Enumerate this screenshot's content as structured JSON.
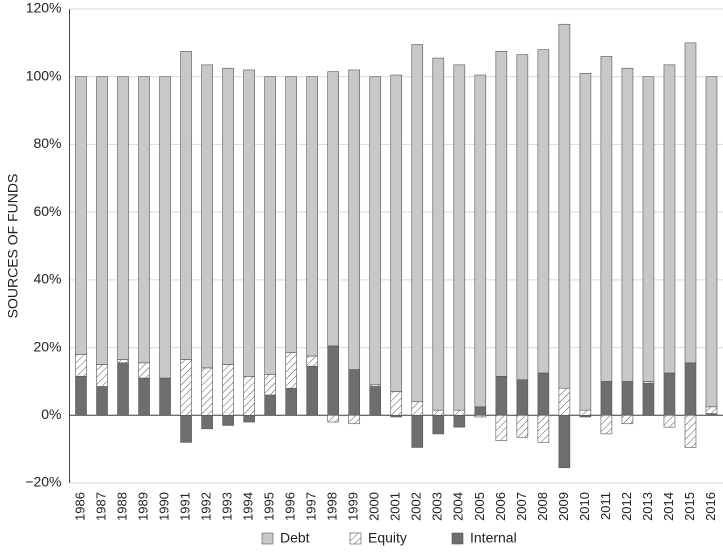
{
  "chart_data": {
    "type": "stacked-bar",
    "y_label": "SOURCES OF FUNDS",
    "categories": [
      "1986",
      "1987",
      "1988",
      "1989",
      "1990",
      "1991",
      "1992",
      "1993",
      "1994",
      "1995",
      "1996",
      "1997",
      "1998",
      "1999",
      "2000",
      "2001",
      "2002",
      "2003",
      "2004",
      "2005",
      "2006",
      "2007",
      "2008",
      "2009",
      "2010",
      "2011",
      "2012",
      "2013",
      "2014",
      "2015",
      "2016"
    ],
    "series": [
      {
        "name": "Debt",
        "color": "#c8c8c8",
        "hatch": false,
        "values": [
          82,
          85,
          83.5,
          84.5,
          89,
          91,
          89.5,
          87.5,
          90.5,
          88,
          81.5,
          82.5,
          81,
          88.5,
          91,
          93.5,
          105.5,
          104,
          102,
          98,
          96,
          96,
          95.5,
          107.5,
          99.5,
          96,
          92.5,
          90,
          91,
          94.5,
          97.5
        ]
      },
      {
        "name": "Equity",
        "color": "#ffffff",
        "hatch": true,
        "values": [
          6.5,
          6.5,
          1,
          4.5,
          0,
          16.5,
          14,
          15,
          11.5,
          6,
          10.5,
          3,
          -2,
          -2.5,
          0.5,
          7,
          4,
          1.5,
          1.5,
          -0.5,
          -7.5,
          -6.5,
          -8,
          8,
          1.5,
          -5.5,
          -2.5,
          0.5,
          -3.5,
          -9.5,
          2
        ]
      },
      {
        "name": "Internal",
        "color": "#6e6e6e",
        "hatch": false,
        "values": [
          11.5,
          8.5,
          15.5,
          11,
          11,
          -8,
          -4,
          -3,
          -2,
          6,
          8,
          14.5,
          20.5,
          13.5,
          8.5,
          -0.5,
          -9.5,
          -5.5,
          -3.5,
          2.5,
          11.5,
          10.5,
          12.5,
          -15.5,
          -0.5,
          10,
          10,
          9.5,
          12.5,
          15.5,
          0.5
        ]
      }
    ],
    "ylim": [
      -20,
      120
    ],
    "yticks": [
      {
        "value": -20,
        "label": "−20%"
      },
      {
        "value": 0,
        "label": "0%"
      },
      {
        "value": 20,
        "label": "20%"
      },
      {
        "value": 40,
        "label": "40%"
      },
      {
        "value": 60,
        "label": "60%"
      },
      {
        "value": 80,
        "label": "80%"
      },
      {
        "value": 100,
        "label": "100%"
      },
      {
        "value": 120,
        "label": "120%"
      }
    ],
    "grid": true,
    "legend": "bottom"
  }
}
